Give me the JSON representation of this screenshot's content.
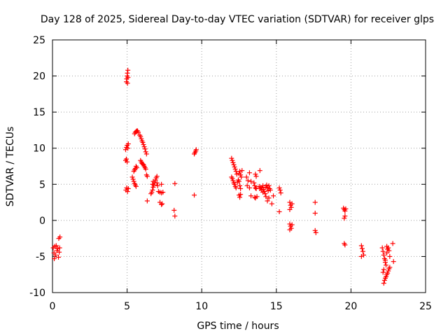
{
  "chart_data": {
    "type": "scatter",
    "title": "Day 128 of 2025, Sidereal Day-to-day VTEC variation (SDTVAR) for receiver glps",
    "xlabel": "GPS time / hours",
    "ylabel": "SDTVAR / TECUs",
    "xlim": [
      0,
      25
    ],
    "ylim": [
      -10,
      25
    ],
    "xticks": [
      0,
      5,
      10,
      15,
      20,
      25
    ],
    "yticks": [
      -10,
      -5,
      0,
      5,
      10,
      15,
      20,
      25
    ],
    "xtick_labels": [
      "0",
      "5",
      "10",
      "15",
      "20",
      "25"
    ],
    "ytick_labels": [
      "-10",
      "-5",
      "0",
      "5",
      "10",
      "15",
      "20",
      "25"
    ],
    "grid": true,
    "marker": "+",
    "color": "#ff0000",
    "series": [
      {
        "name": "SDTVAR",
        "points": [
          [
            0.05,
            -3.8
          ],
          [
            0.1,
            -4.5
          ],
          [
            0.12,
            -5.3
          ],
          [
            0.15,
            -3.6
          ],
          [
            0.2,
            -4.8
          ],
          [
            0.25,
            -3.5
          ],
          [
            0.3,
            -4.2
          ],
          [
            0.35,
            -3.9
          ],
          [
            0.4,
            -5.1
          ],
          [
            0.42,
            -2.5
          ],
          [
            0.45,
            -4.4
          ],
          [
            0.5,
            -2.3
          ],
          [
            0.48,
            -3.8
          ],
          [
            4.95,
            19.2
          ],
          [
            4.97,
            19.6
          ],
          [
            5.0,
            20.0
          ],
          [
            5.02,
            20.4
          ],
          [
            5.05,
            20.8
          ],
          [
            5.03,
            19.0
          ],
          [
            5.06,
            19.8
          ],
          [
            4.9,
            9.8
          ],
          [
            4.95,
            10.1
          ],
          [
            5.0,
            10.4
          ],
          [
            5.05,
            10.0
          ],
          [
            5.08,
            10.6
          ],
          [
            4.9,
            8.3
          ],
          [
            4.95,
            8.5
          ],
          [
            5.0,
            8.1
          ],
          [
            4.92,
            4.2
          ],
          [
            4.97,
            4.5
          ],
          [
            5.03,
            4.0
          ],
          [
            5.08,
            4.4
          ],
          [
            5.35,
            6.0
          ],
          [
            5.4,
            5.7
          ],
          [
            5.45,
            5.4
          ],
          [
            5.5,
            5.1
          ],
          [
            5.55,
            4.9
          ],
          [
            5.6,
            4.7
          ],
          [
            5.45,
            6.8
          ],
          [
            5.5,
            7.0
          ],
          [
            5.55,
            7.2
          ],
          [
            5.6,
            7.5
          ],
          [
            5.65,
            7.3
          ],
          [
            5.5,
            12.0
          ],
          [
            5.55,
            12.2
          ],
          [
            5.6,
            12.3
          ],
          [
            5.65,
            12.4
          ],
          [
            5.7,
            12.4
          ],
          [
            5.75,
            12.2
          ],
          [
            5.85,
            11.8
          ],
          [
            5.9,
            11.6
          ],
          [
            5.95,
            11.3
          ],
          [
            6.0,
            11.0
          ],
          [
            6.05,
            10.8
          ],
          [
            6.1,
            10.5
          ],
          [
            6.15,
            10.2
          ],
          [
            6.2,
            9.9
          ],
          [
            6.25,
            9.5
          ],
          [
            6.3,
            9.2
          ],
          [
            5.9,
            8.3
          ],
          [
            5.95,
            8.1
          ],
          [
            6.0,
            7.9
          ],
          [
            6.05,
            7.8
          ],
          [
            6.1,
            7.7
          ],
          [
            6.15,
            7.5
          ],
          [
            6.2,
            7.3
          ],
          [
            6.25,
            7.1
          ],
          [
            6.3,
            6.3
          ],
          [
            6.35,
            6.1
          ],
          [
            6.35,
            2.7
          ],
          [
            6.6,
            3.7
          ],
          [
            6.65,
            3.9
          ],
          [
            6.7,
            4.2
          ],
          [
            6.75,
            4.6
          ],
          [
            6.8,
            4.9
          ],
          [
            6.85,
            5.2
          ],
          [
            6.9,
            5.6
          ],
          [
            6.95,
            5.9
          ],
          [
            7.0,
            5.2
          ],
          [
            7.05,
            4.8
          ],
          [
            7.0,
            6.1
          ],
          [
            6.7,
            5.0
          ],
          [
            6.75,
            5.4
          ],
          [
            7.1,
            4.0
          ],
          [
            7.2,
            3.9
          ],
          [
            7.3,
            3.8
          ],
          [
            7.4,
            3.9
          ],
          [
            7.3,
            5.0
          ],
          [
            7.2,
            2.5
          ],
          [
            7.3,
            2.2
          ],
          [
            7.35,
            2.3
          ],
          [
            8.2,
            5.1
          ],
          [
            8.15,
            1.4
          ],
          [
            8.2,
            0.6
          ],
          [
            9.5,
            9.2
          ],
          [
            9.55,
            9.4
          ],
          [
            9.6,
            9.6
          ],
          [
            9.63,
            9.8
          ],
          [
            9.5,
            3.5
          ],
          [
            12.0,
            8.6
          ],
          [
            12.05,
            8.3
          ],
          [
            12.1,
            8.0
          ],
          [
            12.15,
            7.7
          ],
          [
            12.2,
            7.4
          ],
          [
            12.25,
            7.1
          ],
          [
            12.3,
            6.8
          ],
          [
            12.35,
            6.4
          ],
          [
            12.0,
            6.0
          ],
          [
            12.05,
            5.8
          ],
          [
            12.1,
            5.5
          ],
          [
            12.15,
            5.2
          ],
          [
            12.2,
            5.0
          ],
          [
            12.25,
            4.7
          ],
          [
            12.3,
            4.5
          ],
          [
            12.4,
            5.3
          ],
          [
            12.45,
            5.6
          ],
          [
            12.5,
            6.5
          ],
          [
            12.55,
            6.8
          ],
          [
            12.6,
            6.3
          ],
          [
            12.7,
            6.9
          ],
          [
            12.65,
            6.0
          ],
          [
            12.5,
            5.4
          ],
          [
            12.55,
            4.8
          ],
          [
            12.6,
            4.4
          ],
          [
            12.5,
            3.5
          ],
          [
            12.55,
            3.2
          ],
          [
            12.6,
            3.6
          ],
          [
            13.0,
            6.0
          ],
          [
            13.1,
            5.5
          ],
          [
            13.2,
            6.6
          ],
          [
            13.3,
            5.4
          ],
          [
            13.05,
            4.8
          ],
          [
            13.2,
            4.5
          ],
          [
            13.3,
            3.4
          ],
          [
            13.6,
            6.4
          ],
          [
            13.65,
            6.1
          ],
          [
            13.5,
            5.2
          ],
          [
            13.55,
            4.8
          ],
          [
            13.6,
            4.5
          ],
          [
            13.65,
            4.4
          ],
          [
            13.55,
            3.2
          ],
          [
            13.6,
            3.1
          ],
          [
            13.7,
            3.3
          ],
          [
            13.9,
            6.9
          ],
          [
            13.85,
            4.7
          ],
          [
            13.9,
            4.4
          ],
          [
            13.95,
            4.6
          ],
          [
            14.0,
            4.2
          ],
          [
            14.05,
            4.5
          ],
          [
            14.1,
            4.8
          ],
          [
            14.15,
            4.3
          ],
          [
            14.2,
            4.0
          ],
          [
            14.3,
            4.6
          ],
          [
            14.35,
            4.9
          ],
          [
            14.4,
            4.5
          ],
          [
            14.45,
            4.1
          ],
          [
            14.5,
            4.8
          ],
          [
            14.55,
            4.4
          ],
          [
            14.6,
            4.2
          ],
          [
            14.25,
            3.7
          ],
          [
            14.1,
            3.9
          ],
          [
            14.3,
            3.3
          ],
          [
            14.4,
            2.7
          ],
          [
            14.5,
            3.1
          ],
          [
            14.7,
            2.3
          ],
          [
            14.8,
            3.4
          ],
          [
            15.2,
            4.5
          ],
          [
            15.25,
            4.2
          ],
          [
            15.3,
            3.8
          ],
          [
            15.2,
            1.2
          ],
          [
            15.9,
            2.5
          ],
          [
            15.95,
            2.1
          ],
          [
            16.0,
            1.8
          ],
          [
            16.05,
            2.3
          ],
          [
            15.9,
            1.5
          ],
          [
            15.9,
            -0.5
          ],
          [
            15.95,
            -0.8
          ],
          [
            16.0,
            -1.1
          ],
          [
            16.05,
            -0.6
          ],
          [
            15.9,
            -1.3
          ],
          [
            17.6,
            2.5
          ],
          [
            17.6,
            1.0
          ],
          [
            17.6,
            -1.4
          ],
          [
            17.65,
            -1.7
          ],
          [
            19.5,
            1.7
          ],
          [
            19.55,
            1.5
          ],
          [
            19.6,
            1.3
          ],
          [
            19.65,
            1.6
          ],
          [
            19.6,
            0.6
          ],
          [
            19.55,
            0.3
          ],
          [
            19.55,
            -3.2
          ],
          [
            19.6,
            -3.4
          ],
          [
            20.7,
            -3.5
          ],
          [
            20.75,
            -3.9
          ],
          [
            20.8,
            -4.3
          ],
          [
            20.85,
            -4.8
          ],
          [
            20.7,
            -5.0
          ],
          [
            22.1,
            -3.8
          ],
          [
            22.15,
            -4.3
          ],
          [
            22.2,
            -4.8
          ],
          [
            22.25,
            -5.3
          ],
          [
            22.3,
            -5.8
          ],
          [
            22.35,
            -6.2
          ],
          [
            22.2,
            -6.8
          ],
          [
            22.15,
            -7.2
          ],
          [
            22.3,
            -5.5
          ],
          [
            22.4,
            -4.5
          ],
          [
            22.45,
            -4.0
          ],
          [
            22.5,
            -3.8
          ],
          [
            22.55,
            -4.2
          ],
          [
            22.6,
            -5.0
          ],
          [
            22.4,
            -3.6
          ],
          [
            22.2,
            -8.7
          ],
          [
            22.25,
            -8.3
          ],
          [
            22.3,
            -8.0
          ],
          [
            22.35,
            -7.8
          ],
          [
            22.4,
            -7.5
          ],
          [
            22.45,
            -7.3
          ],
          [
            22.5,
            -7.0
          ],
          [
            22.55,
            -6.7
          ],
          [
            22.6,
            -6.5
          ],
          [
            22.8,
            -3.2
          ],
          [
            22.85,
            -5.7
          ]
        ]
      }
    ]
  }
}
